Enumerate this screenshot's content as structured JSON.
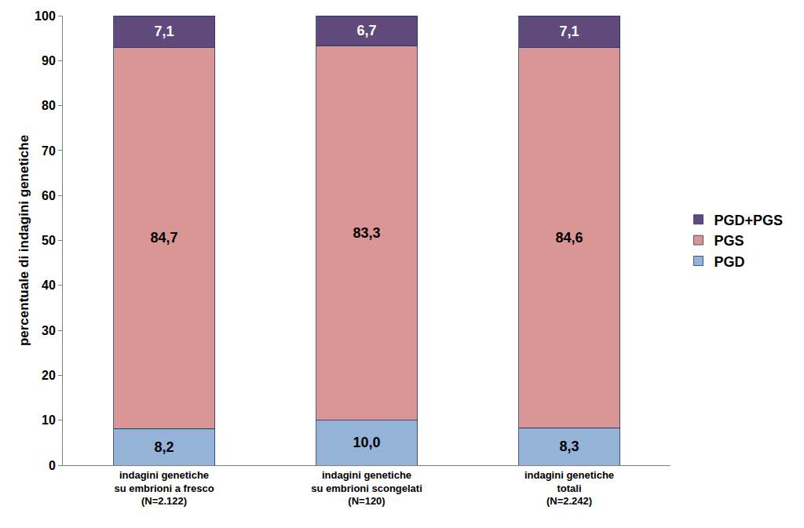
{
  "chart_data": {
    "type": "bar",
    "stacked": true,
    "y_label": "percentuale di indagini genetiche",
    "categories": [
      "indagini genetiche\nsu embrioni a fresco\n(N=2.122)",
      "indagini genetiche\nsu embrioni scongelati\n(N=120)",
      "indagini genetiche\ntotali\n(N=2.242)"
    ],
    "series": [
      {
        "name": "PGD",
        "color": "#95b3d7",
        "values": [
          8.2,
          10.0,
          8.3
        ],
        "value_labels": [
          "8,2",
          "10,0",
          "8,3"
        ]
      },
      {
        "name": "PGS",
        "color": "#d99694",
        "values": [
          84.7,
          83.3,
          84.6
        ],
        "value_labels": [
          "84,7",
          "83,3",
          "84,6"
        ]
      },
      {
        "name": "PGD+PGS",
        "color": "#604a7b",
        "values": [
          7.1,
          6.7,
          7.1
        ],
        "value_labels": [
          "7,1",
          "6,7",
          "7,1"
        ]
      }
    ],
    "ylim": [
      0,
      100
    ],
    "yticks": [
      0,
      10,
      20,
      30,
      40,
      50,
      60,
      70,
      80,
      90,
      100
    ],
    "grid": false,
    "legend": "right",
    "data_labels": true
  }
}
